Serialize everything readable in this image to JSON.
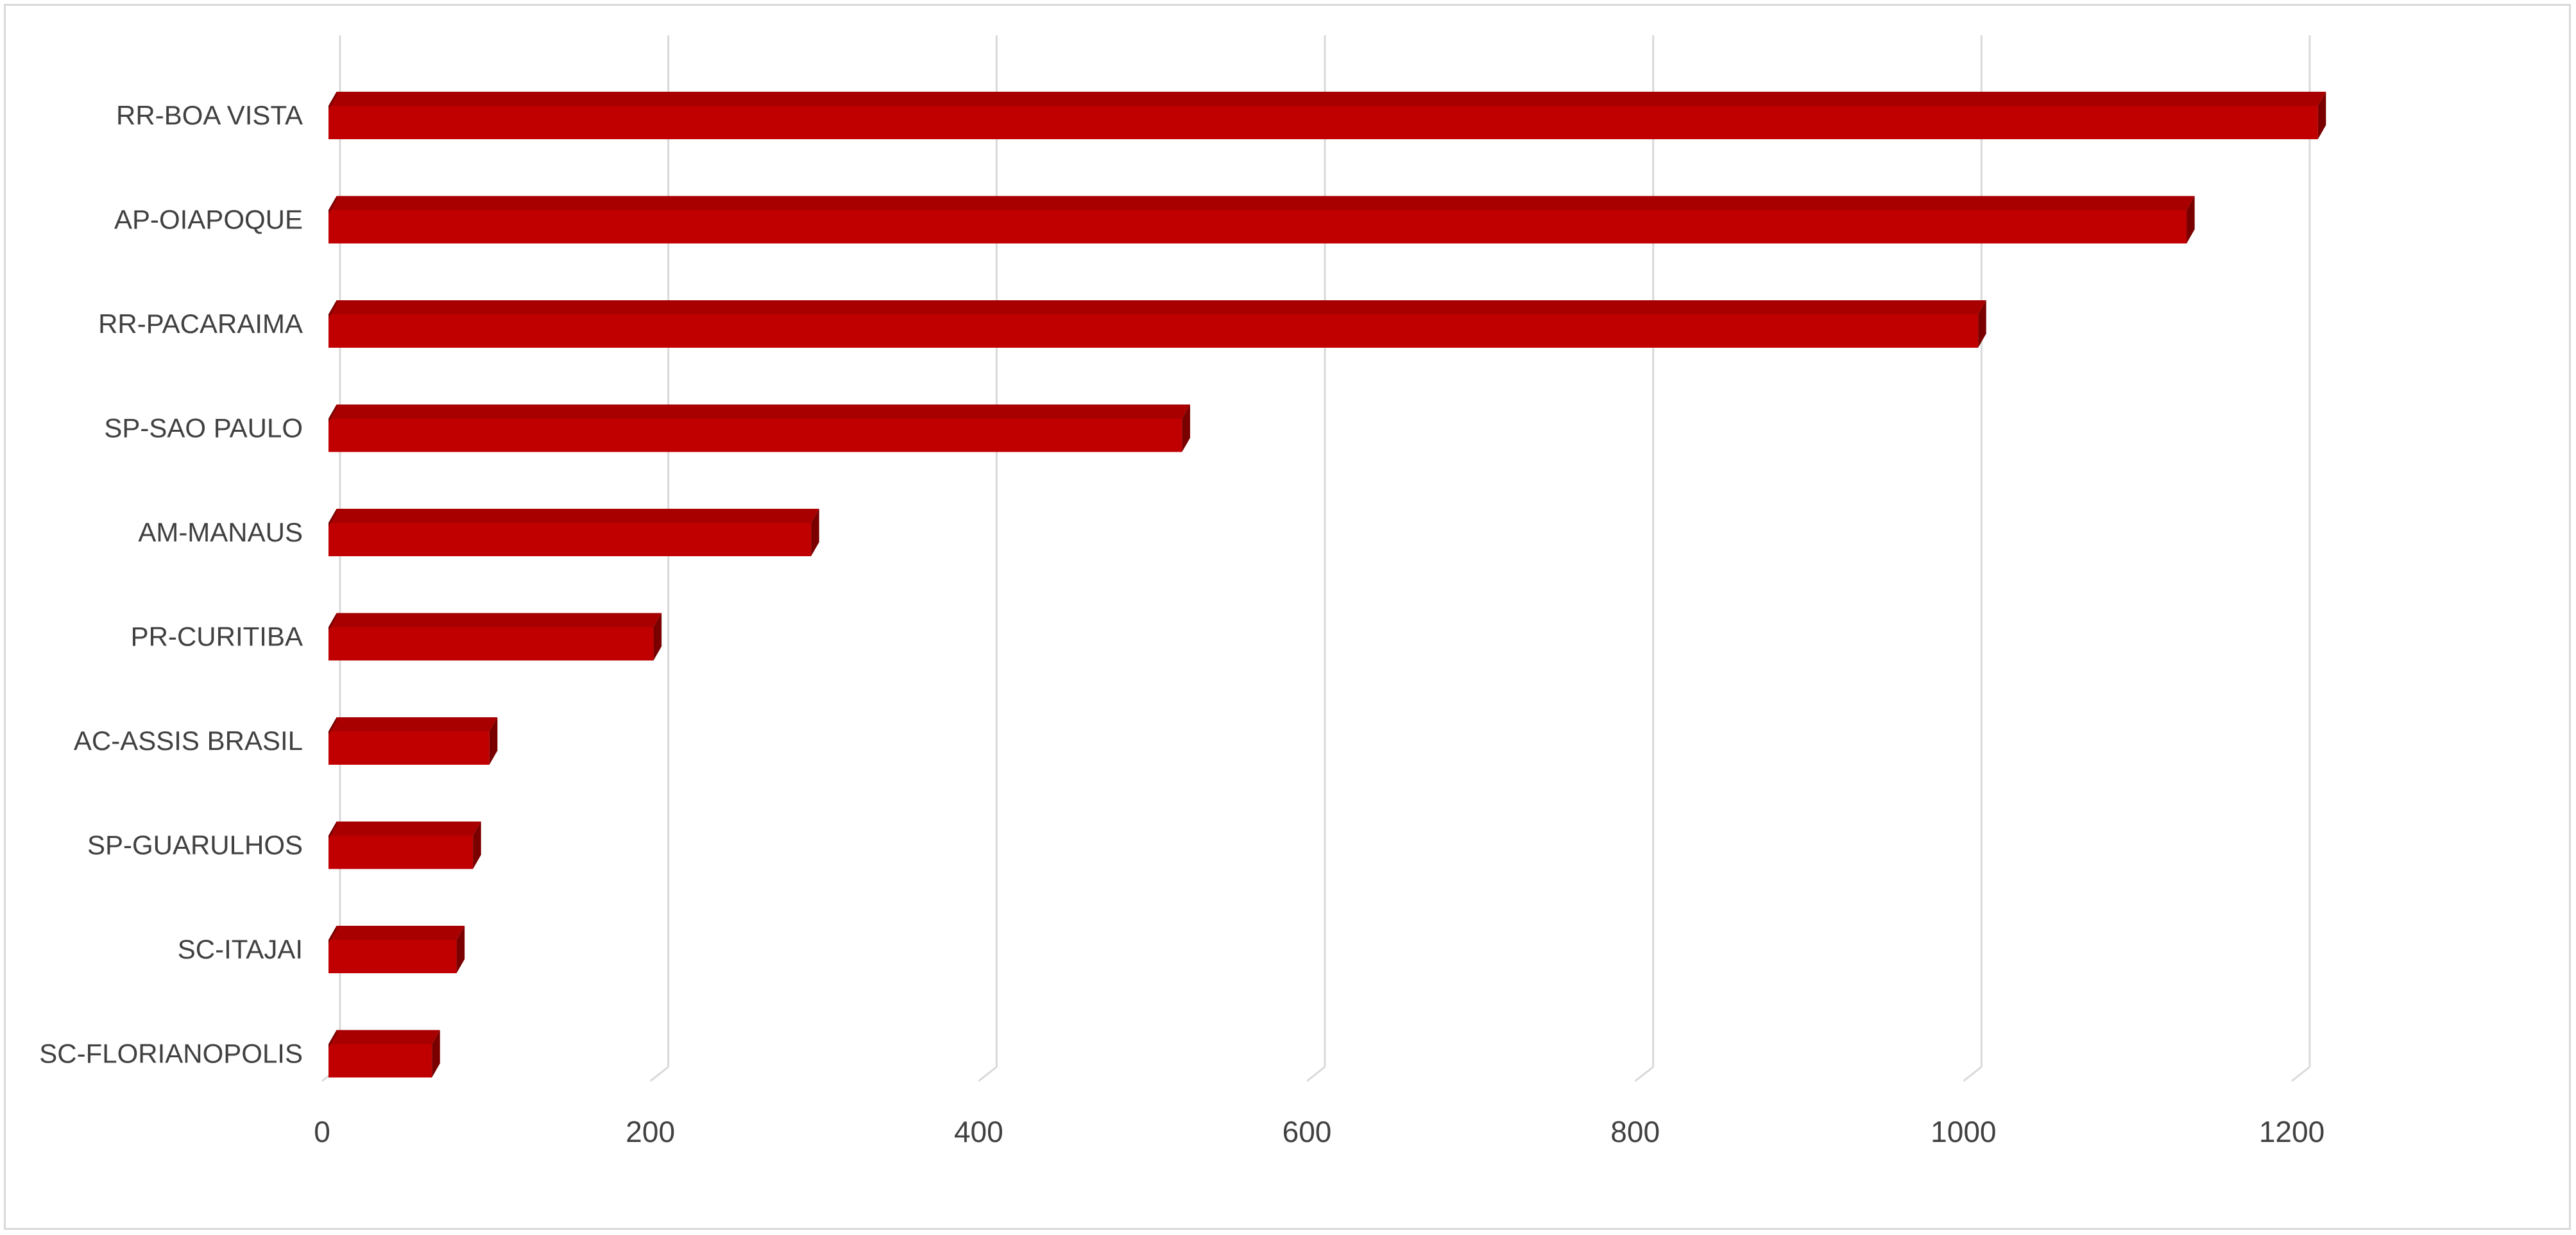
{
  "chart_data": {
    "type": "bar",
    "orientation": "horizontal",
    "style": "3d-clustered",
    "categories": [
      "RR-BOA VISTA",
      "AP-OIAPOQUE",
      "RR-PACARAIMA",
      "SP-SAO PAULO",
      "AM-MANAUS",
      "PR-CURITIBA",
      "AC-ASSIS BRASIL",
      "SP-GUARULHOS",
      "SC-ITAJAI",
      "SC-FLORIANOPOLIS"
    ],
    "values": [
      1212,
      1132,
      1005,
      520,
      294,
      198,
      98,
      88,
      78,
      63
    ],
    "x_ticks": [
      "0",
      "200",
      "400",
      "600",
      "800",
      "1000",
      "1200"
    ],
    "xlim": [
      0,
      1200
    ],
    "grid": true,
    "legend": "none",
    "bar_color": "#c00000",
    "bar_top_color": "#a80000",
    "bar_side_color": "#7a0000"
  }
}
